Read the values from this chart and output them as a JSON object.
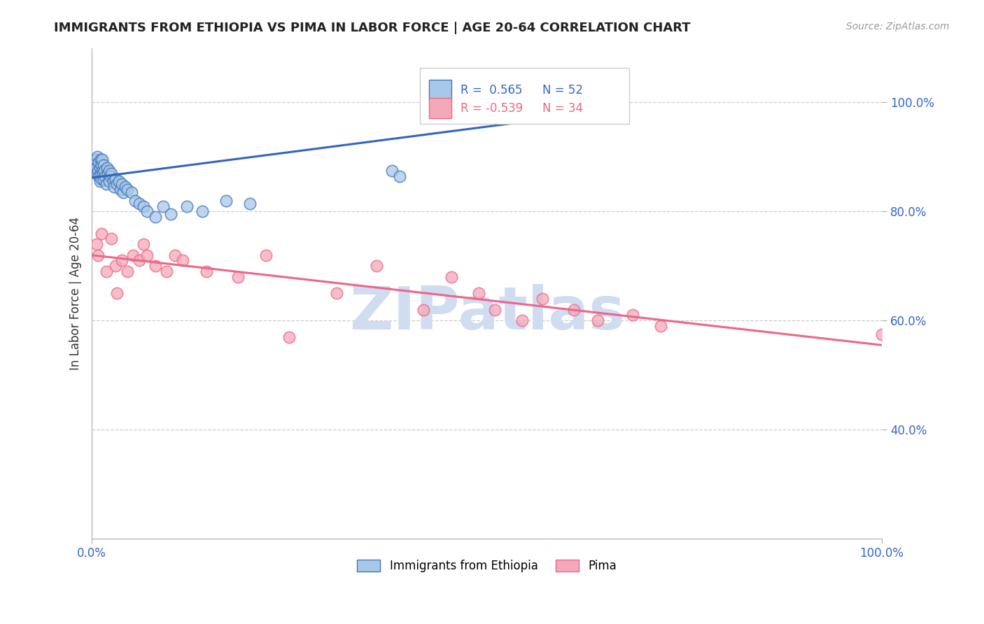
{
  "title": "IMMIGRANTS FROM ETHIOPIA VS PIMA IN LABOR FORCE | AGE 20-64 CORRELATION CHART",
  "source_text": "Source: ZipAtlas.com",
  "ylabel": "In Labor Force | Age 20-64",
  "xlim": [
    0.0,
    1.0
  ],
  "ylim": [
    0.2,
    1.1
  ],
  "ytick_values": [
    0.4,
    0.6,
    0.8,
    1.0
  ],
  "ytick_labels": [
    "40.0%",
    "60.0%",
    "80.0%",
    "100.0%"
  ],
  "xtick_values": [
    0.0,
    1.0
  ],
  "xtick_labels": [
    "0.0%",
    "100.0%"
  ],
  "legend_labels": [
    "Immigrants from Ethiopia",
    "Pima"
  ],
  "blue_R": 0.565,
  "blue_N": 52,
  "pink_R": -0.539,
  "pink_N": 34,
  "blue_color": "#A8C8E8",
  "pink_color": "#F4A8B8",
  "blue_edge_color": "#4477BB",
  "pink_edge_color": "#EE6688",
  "blue_line_color": "#3366BB",
  "pink_line_color": "#EE6688",
  "watermark_color": "#D0DCF0",
  "background_color": "#FFFFFF",
  "grid_color": "#CCCCCC",
  "blue_scatter_x": [
    0.004,
    0.005,
    0.006,
    0.007,
    0.007,
    0.008,
    0.009,
    0.009,
    0.01,
    0.01,
    0.011,
    0.011,
    0.012,
    0.012,
    0.013,
    0.013,
    0.014,
    0.015,
    0.015,
    0.016,
    0.017,
    0.018,
    0.019,
    0.02,
    0.022,
    0.022,
    0.024,
    0.025,
    0.027,
    0.028,
    0.03,
    0.032,
    0.034,
    0.036,
    0.038,
    0.04,
    0.042,
    0.045,
    0.05,
    0.055,
    0.06,
    0.065,
    0.07,
    0.08,
    0.09,
    0.1,
    0.12,
    0.14,
    0.17,
    0.2,
    0.38,
    0.39
  ],
  "blue_scatter_y": [
    0.885,
    0.895,
    0.88,
    0.87,
    0.9,
    0.875,
    0.865,
    0.89,
    0.88,
    0.855,
    0.895,
    0.87,
    0.885,
    0.86,
    0.875,
    0.895,
    0.87,
    0.885,
    0.86,
    0.875,
    0.865,
    0.85,
    0.88,
    0.87,
    0.855,
    0.875,
    0.865,
    0.87,
    0.855,
    0.845,
    0.86,
    0.85,
    0.855,
    0.84,
    0.85,
    0.835,
    0.845,
    0.84,
    0.835,
    0.82,
    0.815,
    0.81,
    0.8,
    0.79,
    0.81,
    0.795,
    0.81,
    0.8,
    0.82,
    0.815,
    0.875,
    0.865
  ],
  "pink_scatter_x": [
    0.006,
    0.008,
    0.012,
    0.018,
    0.025,
    0.03,
    0.032,
    0.038,
    0.045,
    0.052,
    0.06,
    0.065,
    0.07,
    0.08,
    0.095,
    0.105,
    0.115,
    0.145,
    0.185,
    0.22,
    0.25,
    0.31,
    0.36,
    0.42,
    0.455,
    0.49,
    0.51,
    0.545,
    0.57,
    0.61,
    0.64,
    0.685,
    0.72,
    1.0
  ],
  "pink_scatter_y": [
    0.74,
    0.72,
    0.76,
    0.69,
    0.75,
    0.7,
    0.65,
    0.71,
    0.69,
    0.72,
    0.71,
    0.74,
    0.72,
    0.7,
    0.69,
    0.72,
    0.71,
    0.69,
    0.68,
    0.72,
    0.57,
    0.65,
    0.7,
    0.62,
    0.68,
    0.65,
    0.62,
    0.6,
    0.64,
    0.62,
    0.6,
    0.61,
    0.59,
    0.575
  ],
  "blue_trend_x": [
    0.0,
    0.55
  ],
  "blue_trend_y": [
    0.862,
    0.965
  ],
  "pink_trend_x": [
    0.0,
    1.0
  ],
  "pink_trend_y": [
    0.72,
    0.555
  ]
}
